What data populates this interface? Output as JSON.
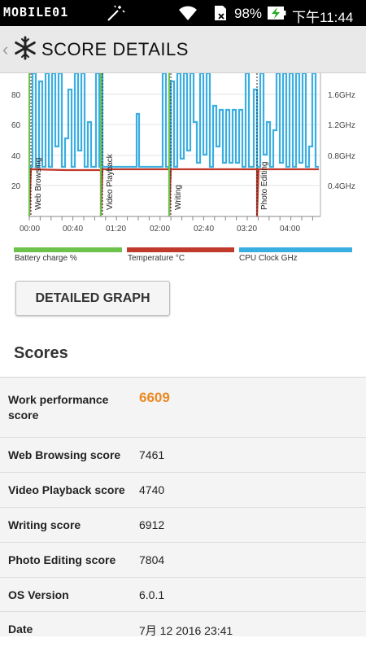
{
  "status_bar": {
    "logo_text": "MOBILE01",
    "battery_percent": "98%",
    "time": "下午11:44",
    "icons": [
      "wand-icon",
      "wifi-icon",
      "sd-card-icon",
      "battery-charging-icon"
    ]
  },
  "header": {
    "title": "SCORE DETAILS",
    "back_icon": "chevron-left-icon",
    "app_icon": "snowflake-icon"
  },
  "chart_data": {
    "type": "line",
    "x_ticks": [
      "00:00",
      "00:40",
      "01:20",
      "02:00",
      "02:40",
      "03:20",
      "04:00"
    ],
    "y_left_ticks": [
      "20",
      "40",
      "60",
      "80"
    ],
    "y_right_ticks": [
      "0.4GHz",
      "0.8GHz",
      "1.2GHz",
      "1.6GHz"
    ],
    "annotations": [
      "Web Browsing",
      "Video Playback",
      "Writing",
      "Photo Editing"
    ],
    "series": [
      {
        "name": "Battery charge %",
        "color": "#6cc24a"
      },
      {
        "name": "Temperature °C",
        "color": "#c0392b"
      },
      {
        "name": "CPU Clock GHz",
        "color": "#3aaee0"
      }
    ],
    "colors": {
      "battery": "#6cc24a",
      "temperature": "#c0392b",
      "cpu": "#3aaee0"
    }
  },
  "detailed_graph_label": "DETAILED GRAPH",
  "scores": {
    "heading": "Scores",
    "rows": [
      {
        "label": "Work performance\nscore",
        "value": "6609",
        "primary": true
      },
      {
        "label": "Web Browsing score",
        "value": "7461"
      },
      {
        "label": "Video Playback score",
        "value": "4740"
      },
      {
        "label": "Writing score",
        "value": "6912"
      },
      {
        "label": "Photo Editing score",
        "value": "7804"
      },
      {
        "label": "OS Version",
        "value": "6.0.1"
      },
      {
        "label": "Date",
        "value": "7月 12 2016 23:41"
      }
    ]
  }
}
